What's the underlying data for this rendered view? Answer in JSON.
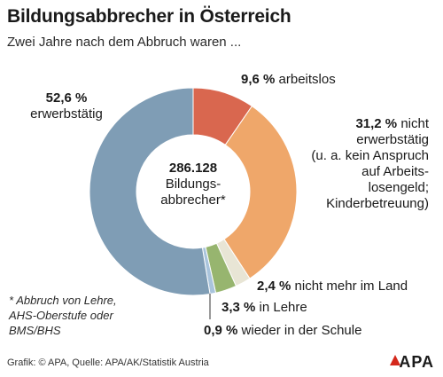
{
  "header": {
    "title": "Bildungsabbrecher in Österreich",
    "subtitle": "Zwei Jahre nach dem Abbruch waren ..."
  },
  "center": {
    "value": "286.128",
    "label_line1": "Bildungs-",
    "label_line2": "abbrecher*"
  },
  "labels": {
    "erwerbstaetig_value": "52,6 %",
    "erwerbstaetig_text": "erwerbstätig",
    "arbeitslos_value": "9,6 %",
    "arbeitslos_text": "arbeitslos",
    "nicht_value": "31,2 %",
    "nicht_text1": "nicht",
    "nicht_text2": "erwerbstätig",
    "nicht_text3": "(u. a. kein Anspruch",
    "nicht_text4": "auf Arbeits-",
    "nicht_text5": "losengeld;",
    "nicht_text6": "Kinderbetreuung)",
    "ausland_value": "2,4 %",
    "ausland_text": "nicht mehr im Land",
    "lehre_value": "3,3 %",
    "lehre_text": "in Lehre",
    "schule_value": "0,9 %",
    "schule_text": "wieder in der Schule"
  },
  "footnote": {
    "line1": "* Abbruch von Lehre,",
    "line2": "AHS-Oberstufe oder",
    "line3": "BMS/BHS"
  },
  "source": "Grafik: © APA, Quelle: APA/AK/Statistik Austria",
  "logo": "APA",
  "chart_data": {
    "type": "pie",
    "donut": true,
    "start_angle_deg": 0,
    "direction": "clockwise",
    "categories": [
      "arbeitslos",
      "nicht erwerbstätig",
      "nicht mehr im Land",
      "in Lehre",
      "wieder in der Schule",
      "erwerbstätig"
    ],
    "values": [
      9.6,
      31.2,
      2.4,
      3.3,
      0.9,
      52.6
    ],
    "colors": [
      "#d9674f",
      "#efa76a",
      "#e8e5d5",
      "#97b56f",
      "#a9c4dc",
      "#7f9db5"
    ],
    "unit": "%",
    "total_label": "286.128"
  }
}
